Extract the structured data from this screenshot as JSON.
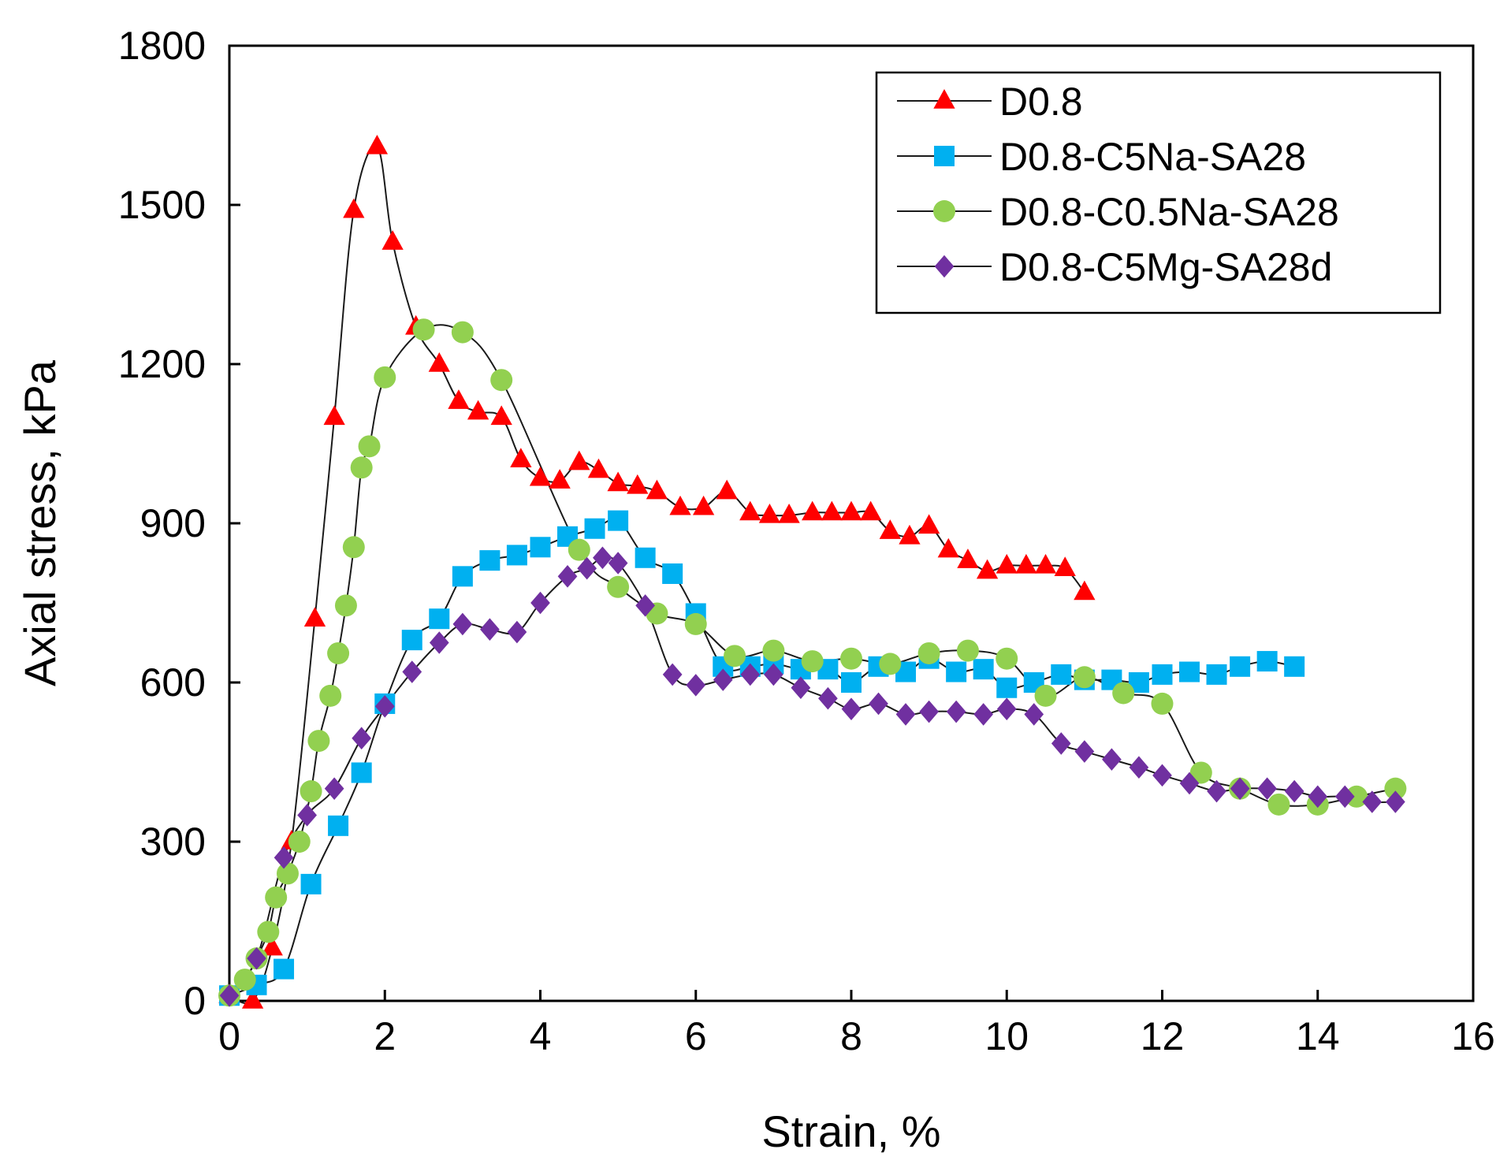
{
  "chart_data": {
    "type": "line",
    "title": "",
    "xlabel": "Strain, %",
    "ylabel": "Axial stress, kPa",
    "xlim": [
      0,
      16
    ],
    "ylim": [
      0,
      1800
    ],
    "xticks": [
      0,
      2,
      4,
      6,
      8,
      10,
      12,
      14,
      16
    ],
    "yticks": [
      0,
      300,
      600,
      900,
      1200,
      1500,
      1800
    ],
    "grid": false,
    "legend_position": "top-right",
    "series": [
      {
        "name": "D0.8",
        "marker": "triangle",
        "color": "#ff0000",
        "x": [
          0,
          0.3,
          0.55,
          0.8,
          1.1,
          1.35,
          1.6,
          1.9,
          2.1,
          2.4,
          2.7,
          2.95,
          3.2,
          3.5,
          3.75,
          4,
          4.25,
          4.5,
          4.75,
          5,
          5.25,
          5.5,
          5.8,
          6.1,
          6.4,
          6.7,
          6.95,
          7.2,
          7.5,
          7.75,
          8,
          8.25,
          8.5,
          8.75,
          9,
          9.25,
          9.5,
          9.75,
          10,
          10.25,
          10.5,
          10.75,
          11
        ],
        "y": [
          10,
          0,
          100,
          300,
          720,
          1100,
          1490,
          1610,
          1430,
          1270,
          1200,
          1130,
          1110,
          1100,
          1020,
          985,
          980,
          1015,
          1000,
          975,
          970,
          960,
          930,
          930,
          960,
          920,
          915,
          915,
          920,
          920,
          920,
          920,
          885,
          875,
          895,
          850,
          830,
          810,
          820,
          820,
          820,
          815,
          770
        ]
      },
      {
        "name": "D0.8-C5Na-SA28",
        "marker": "square",
        "color": "#00b0f0",
        "x": [
          0,
          0.35,
          0.7,
          1.05,
          1.4,
          1.7,
          2,
          2.35,
          2.7,
          3,
          3.35,
          3.7,
          4,
          4.35,
          4.7,
          5,
          5.35,
          5.7,
          6,
          6.35,
          6.7,
          7,
          7.35,
          7.7,
          8,
          8.35,
          8.7,
          9,
          9.35,
          9.7,
          10,
          10.35,
          10.7,
          11,
          11.35,
          11.7,
          12,
          12.35,
          12.7,
          13,
          13.35,
          13.7
        ],
        "y": [
          10,
          30,
          60,
          220,
          330,
          430,
          560,
          680,
          720,
          800,
          830,
          840,
          855,
          875,
          890,
          905,
          835,
          805,
          730,
          630,
          630,
          635,
          625,
          625,
          600,
          630,
          620,
          645,
          620,
          625,
          590,
          600,
          615,
          605,
          605,
          600,
          615,
          620,
          615,
          630,
          640,
          630
        ]
      },
      {
        "name": "D0.8-C0.5Na-SA28",
        "marker": "circle",
        "color": "#92d050",
        "x": [
          0,
          0.2,
          0.35,
          0.5,
          0.6,
          0.75,
          0.9,
          1.05,
          1.15,
          1.3,
          1.4,
          1.5,
          1.6,
          1.7,
          1.8,
          2,
          2.5,
          3,
          3.5,
          4.5,
          5,
          5.5,
          6,
          6.5,
          7,
          7.5,
          8,
          8.5,
          9,
          9.5,
          10,
          10.5,
          11,
          11.5,
          12,
          12.5,
          13,
          13.5,
          14,
          14.5,
          15
        ],
        "y": [
          10,
          40,
          80,
          130,
          195,
          240,
          300,
          395,
          490,
          575,
          655,
          745,
          855,
          1005,
          1045,
          1175,
          1265,
          1260,
          1170,
          850,
          780,
          730,
          710,
          650,
          660,
          640,
          645,
          635,
          655,
          660,
          645,
          575,
          610,
          580,
          560,
          430,
          400,
          370,
          370,
          385,
          400
        ]
      },
      {
        "name": "D0.8-C5Mg-SA28d",
        "marker": "diamond",
        "color": "#7030a0",
        "x": [
          0,
          0.35,
          0.7,
          1,
          1.35,
          1.7,
          2,
          2.35,
          2.7,
          3,
          3.35,
          3.7,
          4,
          4.35,
          4.6,
          4.8,
          5,
          5.35,
          5.7,
          6,
          6.35,
          6.7,
          7,
          7.35,
          7.7,
          8,
          8.35,
          8.7,
          9,
          9.35,
          9.7,
          10,
          10.35,
          10.7,
          11,
          11.35,
          11.7,
          12,
          12.35,
          12.7,
          13,
          13.35,
          13.7,
          14,
          14.35,
          14.7,
          15
        ],
        "y": [
          10,
          80,
          270,
          350,
          400,
          495,
          555,
          620,
          675,
          710,
          700,
          695,
          750,
          800,
          815,
          835,
          825,
          745,
          615,
          595,
          605,
          615,
          615,
          590,
          570,
          550,
          560,
          540,
          545,
          545,
          540,
          550,
          540,
          485,
          470,
          455,
          440,
          425,
          410,
          395,
          400,
          400,
          395,
          385,
          385,
          375,
          375
        ]
      }
    ]
  }
}
